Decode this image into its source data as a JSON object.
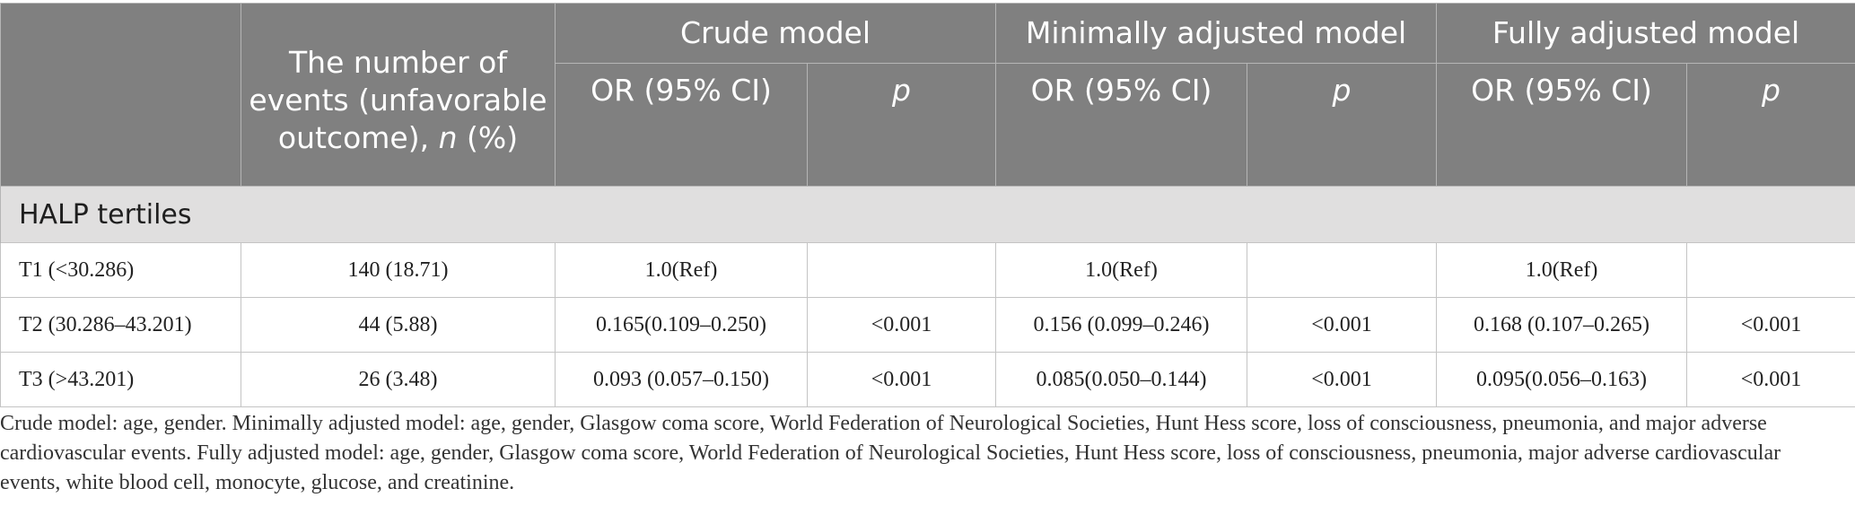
{
  "header": {
    "events_pre": "The number of events (unfavorable outcome), ",
    "events_n": "n",
    "events_post": " (%)",
    "crude_model": "Crude model",
    "minimally_adjusted_model": "Minimally adjusted model",
    "fully_adjusted_model": "Fully adjusted model",
    "or_ci": "OR (95% CI)",
    "p": "p"
  },
  "group_label": "HALP tertiles",
  "rows": [
    {
      "label": "T1 (<30.286)",
      "events": "140 (18.71)",
      "crude_or": "1.0(Ref)",
      "crude_p": "",
      "min_or": "1.0(Ref)",
      "min_p": "",
      "full_or": "1.0(Ref)",
      "full_p": ""
    },
    {
      "label": "T2 (30.286–43.201)",
      "events": "44 (5.88)",
      "crude_or": "0.165(0.109–0.250)",
      "crude_p": "<0.001",
      "min_or": "0.156 (0.099–0.246)",
      "min_p": "<0.001",
      "full_or": "0.168 (0.107–0.265)",
      "full_p": "<0.001"
    },
    {
      "label": "T3 (>43.201)",
      "events": "26 (3.48)",
      "crude_or": "0.093 (0.057–0.150)",
      "crude_p": "<0.001",
      "min_or": "0.085(0.050–0.144)",
      "min_p": "<0.001",
      "full_or": "0.095(0.056–0.163)",
      "full_p": "<0.001"
    }
  ],
  "footnote": "Crude model: age, gender. Minimally adjusted model: age, gender, Glasgow coma score, World Federation of Neurological Societies, Hunt Hess score, loss of consciousness, pneumonia, and major adverse cardiovascular events. Fully adjusted model: age, gender, Glasgow coma score, World Federation of Neurological Societies, Hunt Hess score, loss of consciousness, pneumonia, major adverse cardiovascular events, white blood cell, monocyte, glucose, and creatinine."
}
